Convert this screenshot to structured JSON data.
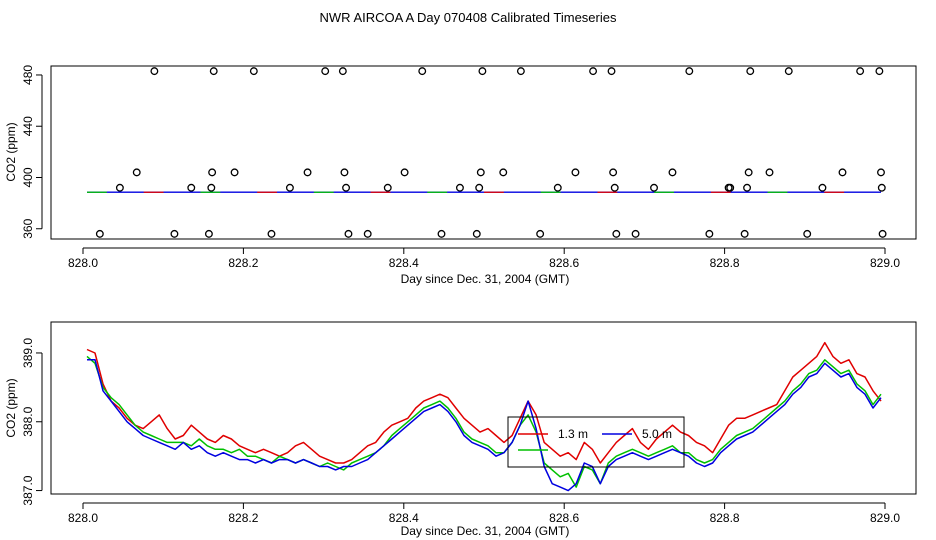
{
  "title": "NWR AIRCOA A  Day 070408  Calibrated Timeseries",
  "colors": {
    "red": "#e00000",
    "green": "#00c000",
    "blue": "#0000e0",
    "axis": "#000000"
  },
  "chart_data": [
    {
      "type": "scatter",
      "xlabel": "Day since Dec. 31, 2004 (GMT)",
      "ylabel": "CO2 (ppm)",
      "xlim": [
        828.0,
        829.0
      ],
      "ylim": [
        352,
        487
      ],
      "xticks": [
        828.0,
        828.2,
        828.4,
        828.6,
        828.8,
        829.0
      ],
      "yticks": [
        360,
        400,
        440,
        480
      ],
      "xtick_labels": [
        "828.0",
        "828.2",
        "828.4",
        "828.6",
        "828.8",
        "829.0"
      ],
      "ytick_labels": [
        "360",
        "400",
        "440",
        "480"
      ],
      "points": [
        [
          828.021,
          356
        ],
        [
          828.046,
          392
        ],
        [
          828.067,
          404
        ],
        [
          828.089,
          483
        ],
        [
          828.114,
          356
        ],
        [
          828.135,
          392
        ],
        [
          828.157,
          356
        ],
        [
          828.16,
          392
        ],
        [
          828.161,
          404
        ],
        [
          828.163,
          483
        ],
        [
          828.189,
          404
        ],
        [
          828.213,
          483
        ],
        [
          828.235,
          356
        ],
        [
          828.258,
          392
        ],
        [
          828.28,
          404
        ],
        [
          828.302,
          483
        ],
        [
          828.324,
          483
        ],
        [
          828.326,
          404
        ],
        [
          828.328,
          392
        ],
        [
          828.331,
          356
        ],
        [
          828.355,
          356
        ],
        [
          828.38,
          392
        ],
        [
          828.401,
          404
        ],
        [
          828.423,
          483
        ],
        [
          828.447,
          356
        ],
        [
          828.47,
          392
        ],
        [
          828.491,
          356
        ],
        [
          828.494,
          392
        ],
        [
          828.496,
          404
        ],
        [
          828.498,
          483
        ],
        [
          828.524,
          404
        ],
        [
          828.546,
          483
        ],
        [
          828.57,
          356
        ],
        [
          828.592,
          392
        ],
        [
          828.614,
          404
        ],
        [
          828.636,
          483
        ],
        [
          828.659,
          483
        ],
        [
          828.661,
          404
        ],
        [
          828.663,
          392
        ],
        [
          828.665,
          356
        ],
        [
          828.689,
          356
        ],
        [
          828.712,
          392
        ],
        [
          828.735,
          404
        ],
        [
          828.756,
          483
        ],
        [
          828.781,
          356
        ],
        [
          828.805,
          392
        ],
        [
          828.807,
          392
        ],
        [
          828.825,
          356
        ],
        [
          828.828,
          392
        ],
        [
          828.83,
          404
        ],
        [
          828.832,
          483
        ],
        [
          828.856,
          404
        ],
        [
          828.88,
          483
        ],
        [
          828.903,
          356
        ],
        [
          828.922,
          392
        ],
        [
          828.947,
          404
        ],
        [
          828.969,
          483
        ],
        [
          828.993,
          483
        ],
        [
          828.995,
          404
        ],
        [
          828.996,
          392
        ],
        [
          828.997,
          356
        ]
      ],
      "baseline": {
        "x_start": 828.005,
        "x_end": 828.995,
        "value": 388.5
      }
    },
    {
      "type": "line",
      "xlabel": "Day since Dec. 31, 2004 (GMT)",
      "ylabel": "CO2 (ppm)",
      "xlim": [
        828.0,
        829.0
      ],
      "ylim": [
        386.95,
        389.45
      ],
      "xticks": [
        828.0,
        828.2,
        828.4,
        828.6,
        828.8,
        829.0
      ],
      "yticks": [
        387.0,
        388.0,
        389.0
      ],
      "xtick_labels": [
        "828.0",
        "828.2",
        "828.4",
        "828.6",
        "828.8",
        "829.0"
      ],
      "ytick_labels": [
        "387.0",
        "388.0",
        "389.0"
      ],
      "x": [
        828.005,
        828.015,
        828.025,
        828.035,
        828.045,
        828.055,
        828.065,
        828.075,
        828.085,
        828.095,
        828.105,
        828.115,
        828.125,
        828.135,
        828.145,
        828.155,
        828.165,
        828.175,
        828.185,
        828.195,
        828.205,
        828.215,
        828.225,
        828.235,
        828.245,
        828.255,
        828.265,
        828.275,
        828.285,
        828.295,
        828.305,
        828.315,
        828.325,
        828.335,
        828.345,
        828.355,
        828.365,
        828.375,
        828.385,
        828.395,
        828.405,
        828.415,
        828.425,
        828.435,
        828.445,
        828.455,
        828.465,
        828.475,
        828.485,
        828.495,
        828.505,
        828.515,
        828.525,
        828.535,
        828.545,
        828.555,
        828.565,
        828.575,
        828.585,
        828.595,
        828.605,
        828.615,
        828.625,
        828.635,
        828.645,
        828.655,
        828.665,
        828.675,
        828.685,
        828.695,
        828.705,
        828.715,
        828.725,
        828.735,
        828.745,
        828.755,
        828.765,
        828.775,
        828.785,
        828.795,
        828.805,
        828.815,
        828.825,
        828.835,
        828.845,
        828.855,
        828.865,
        828.875,
        828.885,
        828.895,
        828.905,
        828.915,
        828.925,
        828.935,
        828.945,
        828.955,
        828.965,
        828.975,
        828.985,
        828.995
      ],
      "series": [
        {
          "name": "1.3 m",
          "color": "red",
          "values": [
            389.05,
            389.0,
            388.55,
            388.3,
            388.2,
            388.05,
            387.95,
            387.9,
            388.0,
            388.1,
            387.9,
            387.75,
            387.8,
            387.95,
            387.85,
            387.75,
            387.7,
            387.8,
            387.75,
            387.65,
            387.6,
            387.55,
            387.6,
            387.55,
            387.5,
            387.55,
            387.65,
            387.7,
            387.6,
            387.5,
            387.45,
            387.4,
            387.4,
            387.45,
            387.55,
            387.65,
            387.7,
            387.85,
            387.95,
            388.0,
            388.05,
            388.2,
            388.3,
            388.35,
            388.4,
            388.35,
            388.2,
            388.05,
            387.95,
            387.85,
            387.9,
            387.8,
            387.7,
            387.8,
            388.05,
            388.3,
            388.1,
            387.7,
            387.6,
            387.5,
            387.55,
            387.45,
            387.7,
            387.6,
            387.4,
            387.55,
            387.7,
            387.8,
            387.9,
            387.7,
            387.6,
            387.75,
            387.85,
            387.95,
            387.85,
            387.8,
            387.7,
            387.65,
            387.55,
            387.75,
            387.95,
            388.05,
            388.05,
            388.1,
            388.15,
            388.2,
            388.25,
            388.45,
            388.65,
            388.75,
            388.85,
            388.95,
            389.15,
            388.95,
            388.85,
            388.9,
            388.7,
            388.65,
            388.45,
            388.3
          ]
        },
        {
          "name": "",
          "color": "green",
          "values": [
            388.95,
            388.85,
            388.5,
            388.35,
            388.25,
            388.1,
            387.95,
            387.85,
            387.8,
            387.75,
            387.7,
            387.7,
            387.7,
            387.65,
            387.75,
            387.65,
            387.6,
            387.6,
            387.55,
            387.6,
            387.5,
            387.5,
            387.45,
            387.4,
            387.5,
            387.45,
            387.4,
            387.45,
            387.4,
            387.35,
            387.4,
            387.35,
            387.3,
            387.4,
            387.45,
            387.5,
            387.55,
            387.65,
            387.8,
            387.9,
            388.0,
            388.1,
            388.2,
            388.25,
            388.3,
            388.2,
            388.05,
            387.85,
            387.75,
            387.7,
            387.65,
            387.55,
            387.55,
            387.7,
            387.95,
            388.1,
            387.85,
            387.4,
            387.3,
            387.2,
            387.25,
            387.05,
            387.35,
            387.3,
            387.1,
            387.4,
            387.5,
            387.55,
            387.6,
            387.55,
            387.5,
            387.55,
            387.6,
            387.65,
            387.55,
            387.55,
            387.45,
            387.4,
            387.45,
            387.6,
            387.7,
            387.8,
            387.85,
            387.9,
            388.0,
            388.1,
            388.2,
            388.3,
            388.45,
            388.55,
            388.7,
            388.75,
            388.9,
            388.8,
            388.7,
            388.75,
            388.55,
            388.45,
            388.25,
            388.4
          ]
        },
        {
          "name": "5.0 m",
          "color": "blue",
          "values": [
            388.9,
            388.9,
            388.45,
            388.3,
            388.15,
            388.0,
            387.9,
            387.8,
            387.75,
            387.7,
            387.65,
            387.6,
            387.7,
            387.6,
            387.65,
            387.55,
            387.5,
            387.55,
            387.5,
            387.45,
            387.45,
            387.4,
            387.45,
            387.4,
            387.45,
            387.45,
            387.4,
            387.45,
            387.4,
            387.35,
            387.35,
            387.3,
            387.35,
            387.35,
            387.4,
            387.45,
            387.55,
            387.65,
            387.75,
            387.85,
            387.95,
            388.05,
            388.15,
            388.2,
            388.25,
            388.15,
            388.0,
            387.8,
            387.7,
            387.65,
            387.6,
            387.5,
            387.55,
            387.7,
            387.95,
            388.3,
            387.9,
            387.35,
            387.1,
            387.05,
            387.0,
            387.1,
            387.4,
            387.35,
            387.1,
            387.35,
            387.45,
            387.5,
            387.55,
            387.5,
            387.45,
            387.5,
            387.55,
            387.6,
            387.55,
            387.5,
            387.4,
            387.35,
            387.4,
            387.55,
            387.65,
            387.75,
            387.8,
            387.85,
            387.95,
            388.05,
            388.15,
            388.25,
            388.4,
            388.5,
            388.65,
            388.7,
            388.85,
            388.75,
            388.65,
            388.7,
            388.5,
            388.4,
            388.2,
            388.35
          ]
        }
      ],
      "legend": {
        "placement": "center-bottom",
        "entries": [
          "1.3 m",
          "5.0 m"
        ]
      }
    }
  ]
}
